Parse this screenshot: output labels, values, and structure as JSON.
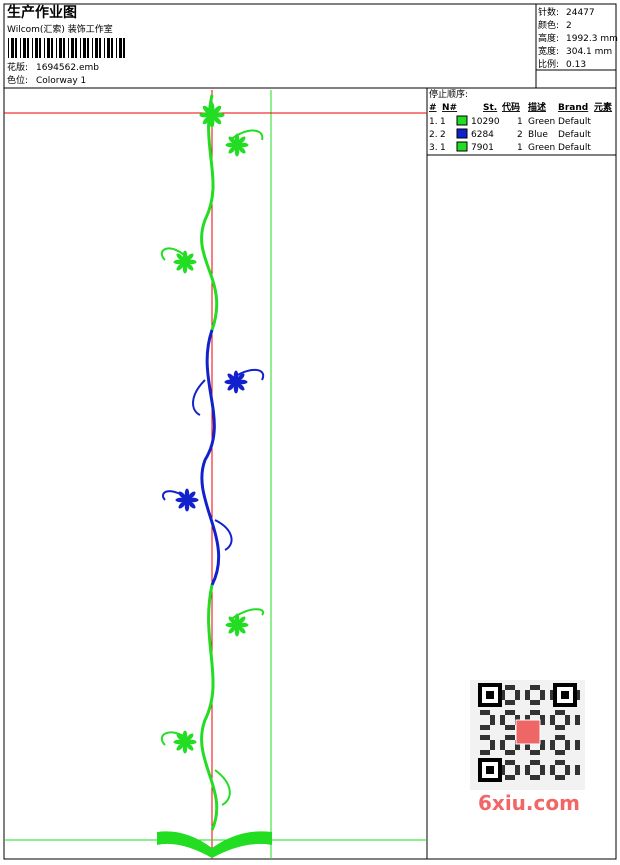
{
  "header": {
    "title": "生产作业图",
    "company": "Wilcom(汇索) 装饰工作室",
    "design_label": "花版:",
    "design": "1694562.emb",
    "colorway_label": "色位:",
    "colorway": "Colorway 1"
  },
  "stats": [
    {
      "label": "针数:",
      "value": "24477"
    },
    {
      "label": "颜色:",
      "value": "2"
    },
    {
      "label": "高度:",
      "value": "1992.3 mm"
    },
    {
      "label": "宽度:",
      "value": "304.1 mm"
    },
    {
      "label": "比例:",
      "value": "0.13"
    }
  ],
  "table": {
    "title": "停止顺序:",
    "columns": [
      "#",
      "N#",
      "St.",
      "代码",
      "描述",
      "Brand",
      "元素"
    ],
    "rows": [
      {
        "index": "1.",
        "needle": "1",
        "color": "#22dd22",
        "stitches": "10290",
        "code": "1",
        "description": "Green",
        "brand": "Default"
      },
      {
        "index": "2.",
        "needle": "2",
        "color": "#1122cc",
        "stitches": "6284",
        "code": "2",
        "description": "Blue",
        "brand": "Default"
      },
      {
        "index": "3.",
        "needle": "1",
        "color": "#22dd22",
        "stitches": "7901",
        "code": "1",
        "description": "Green",
        "brand": "Default"
      }
    ]
  },
  "watermark": {
    "text": "6xiu.com"
  }
}
